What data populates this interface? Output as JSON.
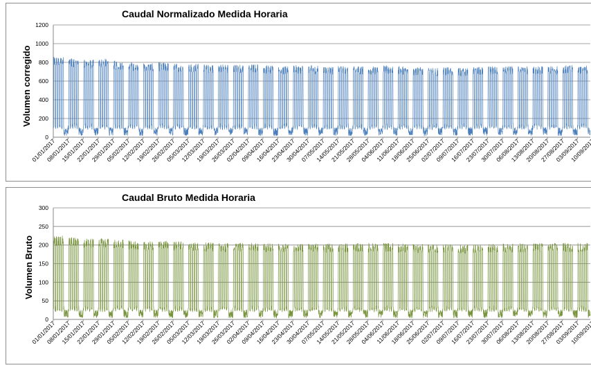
{
  "chart_data": [
    {
      "type": "line",
      "title": "Caudal Normalizado Medida Horaria",
      "xlabel": "",
      "ylabel": "Volumen corregido",
      "ylim": [
        0,
        1200
      ],
      "yticks": [
        0,
        200,
        400,
        600,
        800,
        1000,
        1200
      ],
      "grid": true,
      "legend": "none",
      "color": "#4a7ebb",
      "x_tick_labels": [
        "01/01/2017",
        "08/01/2017",
        "15/01/2017",
        "22/01/2017",
        "29/01/2017",
        "05/02/2017",
        "12/02/2017",
        "19/02/2017",
        "26/02/2017",
        "05/03/2017",
        "12/03/2017",
        "19/03/2017",
        "26/03/2017",
        "02/04/2017",
        "09/04/2017",
        "16/04/2017",
        "23/04/2017",
        "30/04/2017",
        "07/05/2017",
        "14/05/2017",
        "21/05/2017",
        "28/05/2017",
        "04/06/2017",
        "11/06/2017",
        "18/06/2017",
        "25/06/2017",
        "02/07/2017",
        "09/07/2017",
        "16/07/2017",
        "23/07/2017",
        "30/07/2017",
        "06/08/2017",
        "13/08/2017",
        "20/08/2017",
        "27/08/2017",
        "03/09/2017",
        "10/09/2017"
      ],
      "weekday_peak": [
        860,
        850,
        830,
        840,
        820,
        800,
        790,
        800,
        790,
        790,
        780,
        780,
        780,
        780,
        770,
        760,
        770,
        770,
        760,
        760,
        760,
        760,
        770,
        760,
        750,
        740,
        750,
        740,
        750,
        760,
        760,
        760,
        760,
        760,
        770,
        770
      ],
      "base_level": 100
    },
    {
      "type": "line",
      "title": "Caudal Bruto Medida Horaria",
      "xlabel": "",
      "ylabel": "Volumen Bruto",
      "ylim": [
        0,
        300
      ],
      "yticks": [
        0,
        50,
        100,
        150,
        200,
        250,
        300
      ],
      "grid": true,
      "legend": "none",
      "color": "#77933c",
      "x_tick_labels": [
        "01/01/2017",
        "08/01/2017",
        "15/01/2017",
        "22/01/2017",
        "29/01/2017",
        "05/02/2017",
        "12/02/2017",
        "19/02/2017",
        "26/02/2017",
        "05/03/2017",
        "12/03/2017",
        "19/03/2017",
        "26/03/2017",
        "02/04/2017",
        "09/04/2017",
        "16/04/2017",
        "23/04/2017",
        "30/04/2017",
        "07/05/2017",
        "14/05/2017",
        "21/05/2017",
        "28/05/2017",
        "04/06/2017",
        "11/06/2017",
        "18/06/2017",
        "25/06/2017",
        "02/07/2017",
        "09/07/2017",
        "16/07/2017",
        "23/07/2017",
        "30/07/2017",
        "06/08/2017",
        "13/08/2017",
        "20/08/2017",
        "27/08/2017",
        "03/09/2017",
        "10/09/2017"
      ],
      "weekday_peak": [
        225,
        222,
        218,
        218,
        215,
        212,
        210,
        212,
        210,
        208,
        207,
        206,
        206,
        206,
        205,
        205,
        205,
        205,
        204,
        205,
        205,
        205,
        206,
        204,
        203,
        202,
        203,
        201,
        202,
        204,
        204,
        205,
        205,
        205,
        206,
        206
      ],
      "base_level": 25
    }
  ]
}
